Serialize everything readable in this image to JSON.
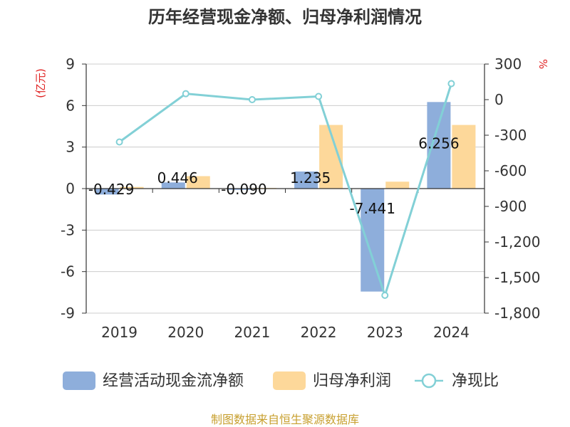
{
  "chart_data": {
    "type": "bar+line",
    "title": "历年经营现金净额、归母净利润情况",
    "categories": [
      "2019",
      "2020",
      "2021",
      "2022",
      "2023",
      "2024"
    ],
    "left_axis": {
      "unit": "(亿元)",
      "min": -9,
      "max": 9,
      "ticks": [
        9,
        6,
        3,
        0,
        -3,
        -6,
        -9
      ]
    },
    "right_axis": {
      "unit": "%",
      "min": -1800,
      "max": 300,
      "ticks": [
        300,
        0,
        -300,
        -600,
        -900,
        -1200,
        -1500,
        -1800
      ],
      "tick_labels": [
        "300",
        "0",
        "-300",
        "-600",
        "-900",
        "-1,200",
        "-1,500",
        "-1,800"
      ]
    },
    "series": [
      {
        "name": "经营活动现金流净额",
        "type": "bar",
        "axis": "left",
        "color": "#8eaedb",
        "values": [
          -0.429,
          0.446,
          -0.09,
          1.235,
          -7.441,
          6.256
        ],
        "labels": [
          "-0.429",
          "0.446",
          "-0.090",
          "1.235",
          "-7.441",
          "6.256"
        ]
      },
      {
        "name": "归母净利润",
        "type": "bar",
        "axis": "left",
        "color": "#fdd89a",
        "values": [
          0.12,
          0.9,
          0.05,
          4.6,
          0.5,
          4.6
        ]
      },
      {
        "name": "净现比",
        "type": "line",
        "axis": "right",
        "color": "#82d0d6",
        "values": [
          -357,
          50,
          0,
          27,
          -1650,
          135
        ]
      }
    ]
  },
  "source": "制图数据来自恒生聚源数据库"
}
